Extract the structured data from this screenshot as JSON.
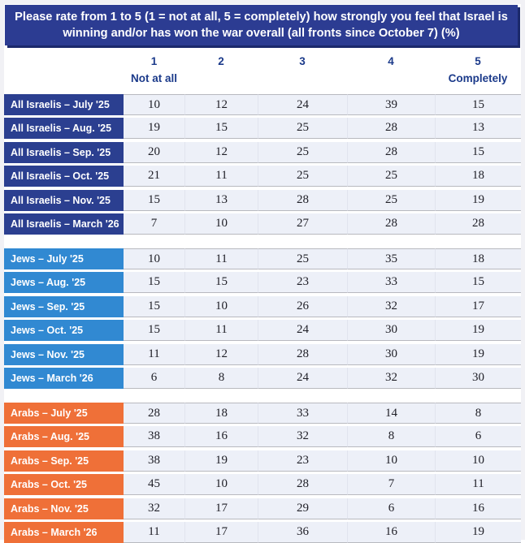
{
  "chart_data": {
    "type": "table",
    "title": "Please rate from 1 to 5 (1 = not at all, 5 = completely) how strongly you feel that Israel is winning and/or has won the war overall (all fronts since October 7) (%)",
    "scale_columns": [
      {
        "value": "1",
        "caption": "Not at all"
      },
      {
        "value": "2",
        "caption": ""
      },
      {
        "value": "3",
        "caption": ""
      },
      {
        "value": "4",
        "caption": ""
      },
      {
        "value": "5",
        "caption": "Completely"
      }
    ],
    "groups": [
      {
        "id": "all-israelis",
        "name": "All Israelis",
        "label_color": "#2b3f90",
        "rows": [
          {
            "label": "All Israelis – July '25",
            "values": [
              10,
              12,
              24,
              39,
              15
            ]
          },
          {
            "label": "All Israelis – Aug. '25",
            "values": [
              19,
              15,
              25,
              28,
              13
            ]
          },
          {
            "label": "All Israelis – Sep. '25",
            "values": [
              20,
              12,
              25,
              28,
              15
            ]
          },
          {
            "label": "All Israelis – Oct. '25",
            "values": [
              21,
              11,
              25,
              25,
              18
            ]
          },
          {
            "label": "All Israelis – Nov. '25",
            "values": [
              15,
              13,
              28,
              25,
              19
            ]
          },
          {
            "label": "All Israelis – March '26",
            "values": [
              7,
              10,
              27,
              28,
              28
            ]
          }
        ]
      },
      {
        "id": "jews",
        "name": "Jews",
        "label_color": "#3189d2",
        "rows": [
          {
            "label": "Jews – July '25",
            "values": [
              10,
              11,
              25,
              35,
              18
            ]
          },
          {
            "label": "Jews – Aug. '25",
            "values": [
              15,
              15,
              23,
              33,
              15
            ]
          },
          {
            "label": "Jews – Sep. '25",
            "values": [
              15,
              10,
              26,
              32,
              17
            ]
          },
          {
            "label": "Jews – Oct. '25",
            "values": [
              15,
              11,
              24,
              30,
              19
            ]
          },
          {
            "label": "Jews – Nov. '25",
            "values": [
              11,
              12,
              28,
              30,
              19
            ]
          },
          {
            "label": "Jews – March '26",
            "values": [
              6,
              8,
              24,
              32,
              30
            ]
          }
        ]
      },
      {
        "id": "arabs",
        "name": "Arabs",
        "label_color": "#ef7038",
        "rows": [
          {
            "label": "Arabs – July '25",
            "values": [
              28,
              18,
              33,
              14,
              8
            ]
          },
          {
            "label": "Arabs – Aug. '25",
            "values": [
              38,
              16,
              32,
              8,
              6
            ]
          },
          {
            "label": "Arabs – Sep. '25",
            "values": [
              38,
              19,
              23,
              10,
              10
            ]
          },
          {
            "label": "Arabs – Oct. '25",
            "values": [
              45,
              10,
              28,
              7,
              11
            ]
          },
          {
            "label": "Arabs – Nov. '25",
            "values": [
              32,
              17,
              29,
              6,
              16
            ]
          },
          {
            "label": "Arabs – March '26",
            "values": [
              11,
              17,
              36,
              16,
              19
            ]
          }
        ]
      }
    ]
  },
  "colors": {
    "title_bg": "#2c3c92",
    "title_shadow": "#1b296b",
    "scale_text": "#1b3a8a",
    "cell_bg": "#edf0f8",
    "row_border": "#b8b9bf",
    "frame": "#f1f1f5",
    "all_israelis_label": "#2b3f90",
    "jews_label": "#3189d2",
    "arabs_label": "#ef7038"
  }
}
